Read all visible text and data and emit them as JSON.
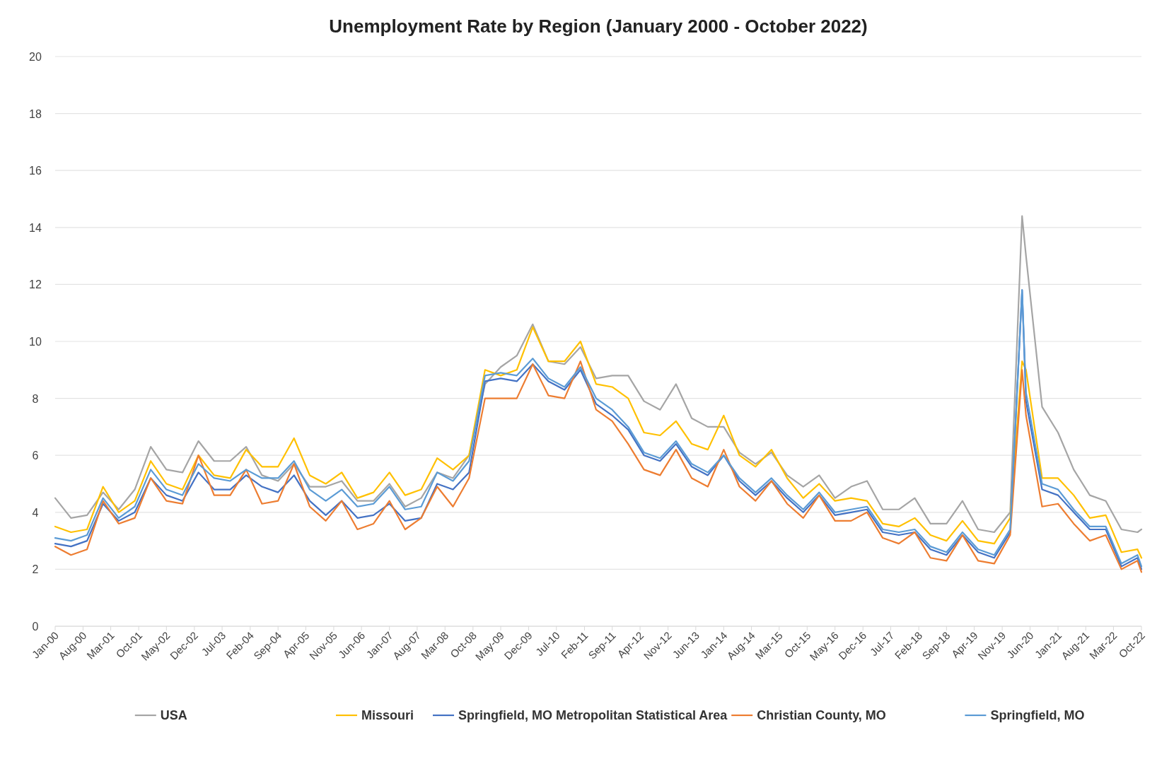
{
  "chart_data": {
    "type": "line",
    "title": "Unemployment Rate by Region (January 2000 - October 2022)",
    "x": [
      "2000-01",
      "2000-05",
      "2000-09",
      "2001-01",
      "2001-05",
      "2001-09",
      "2002-01",
      "2002-05",
      "2002-09",
      "2003-01",
      "2003-05",
      "2003-09",
      "2004-01",
      "2004-05",
      "2004-09",
      "2005-01",
      "2005-05",
      "2005-09",
      "2006-01",
      "2006-05",
      "2006-09",
      "2007-01",
      "2007-05",
      "2007-09",
      "2008-01",
      "2008-05",
      "2008-09",
      "2009-01",
      "2009-05",
      "2009-09",
      "2010-01",
      "2010-05",
      "2010-09",
      "2011-01",
      "2011-05",
      "2011-09",
      "2012-01",
      "2012-05",
      "2012-09",
      "2013-01",
      "2013-05",
      "2013-09",
      "2014-01",
      "2014-05",
      "2014-09",
      "2015-01",
      "2015-05",
      "2015-09",
      "2016-01",
      "2016-05",
      "2016-09",
      "2017-01",
      "2017-05",
      "2017-09",
      "2018-01",
      "2018-05",
      "2018-09",
      "2019-01",
      "2019-05",
      "2019-09",
      "2020-01",
      "2020-04",
      "2020-05",
      "2020-09",
      "2021-01",
      "2021-05",
      "2021-09",
      "2022-01",
      "2022-05",
      "2022-09",
      "2022-10"
    ],
    "series": [
      {
        "name": "USA",
        "color": "#a5a5a5",
        "values": [
          4.5,
          3.8,
          3.9,
          4.7,
          4.1,
          4.8,
          6.3,
          5.5,
          5.4,
          6.5,
          5.8,
          5.8,
          6.3,
          5.3,
          5.1,
          5.7,
          4.9,
          4.9,
          5.1,
          4.4,
          4.4,
          5.0,
          4.2,
          4.5,
          5.4,
          5.2,
          6.0,
          8.5,
          9.1,
          9.5,
          10.6,
          9.3,
          9.2,
          9.8,
          8.7,
          8.8,
          8.8,
          7.9,
          7.6,
          8.5,
          7.3,
          7.0,
          7.0,
          6.1,
          5.7,
          6.1,
          5.3,
          4.9,
          5.3,
          4.5,
          4.9,
          5.1,
          4.1,
          4.1,
          4.5,
          3.6,
          3.6,
          4.4,
          3.4,
          3.3,
          4.0,
          14.4,
          13.0,
          7.7,
          6.8,
          5.5,
          4.6,
          4.4,
          3.4,
          3.3,
          3.4
        ]
      },
      {
        "name": "Missouri",
        "color": "#ffc000",
        "values": [
          3.5,
          3.3,
          3.4,
          4.9,
          4.0,
          4.4,
          5.8,
          5.0,
          4.8,
          6.0,
          5.3,
          5.2,
          6.2,
          5.6,
          5.6,
          6.6,
          5.3,
          5.0,
          5.4,
          4.5,
          4.7,
          5.4,
          4.6,
          4.8,
          5.9,
          5.5,
          6.0,
          9.0,
          8.8,
          9.0,
          10.5,
          9.3,
          9.3,
          10.0,
          8.5,
          8.4,
          8.0,
          6.8,
          6.7,
          7.2,
          6.4,
          6.2,
          7.4,
          6.0,
          5.6,
          6.2,
          5.2,
          4.5,
          5.0,
          4.4,
          4.5,
          4.4,
          3.6,
          3.5,
          3.8,
          3.2,
          3.0,
          3.7,
          3.0,
          2.9,
          3.8,
          9.3,
          9.0,
          5.2,
          5.2,
          4.6,
          3.8,
          3.9,
          2.6,
          2.7,
          2.4
        ]
      },
      {
        "name": "Springfield, MO Metropolitan Statistical Area",
        "color": "#4472c4",
        "values": [
          2.9,
          2.8,
          3.0,
          4.3,
          3.7,
          4.0,
          5.2,
          4.6,
          4.4,
          5.4,
          4.8,
          4.8,
          5.3,
          4.9,
          4.7,
          5.3,
          4.4,
          3.9,
          4.4,
          3.8,
          3.9,
          4.3,
          3.7,
          3.8,
          5.0,
          4.8,
          5.4,
          8.6,
          8.7,
          8.6,
          9.2,
          8.6,
          8.3,
          9.0,
          7.8,
          7.4,
          6.9,
          6.0,
          5.8,
          6.4,
          5.6,
          5.3,
          6.0,
          5.1,
          4.6,
          5.1,
          4.5,
          4.0,
          4.6,
          3.9,
          4.0,
          4.1,
          3.3,
          3.2,
          3.3,
          2.7,
          2.5,
          3.2,
          2.6,
          2.4,
          3.3,
          11.8,
          7.9,
          4.8,
          4.6,
          4.0,
          3.4,
          3.4,
          2.1,
          2.4,
          2.0
        ]
      },
      {
        "name": "Christian County, MO",
        "color": "#ed7d31",
        "values": [
          2.8,
          2.5,
          2.7,
          4.4,
          3.6,
          3.8,
          5.2,
          4.4,
          4.3,
          6.0,
          4.6,
          4.6,
          5.5,
          4.3,
          4.4,
          5.7,
          4.2,
          3.7,
          4.4,
          3.4,
          3.6,
          4.4,
          3.4,
          3.8,
          4.9,
          4.2,
          5.2,
          8.0,
          8.0,
          8.0,
          9.2,
          8.1,
          8.0,
          9.3,
          7.6,
          7.2,
          6.4,
          5.5,
          5.3,
          6.2,
          5.2,
          4.9,
          6.2,
          4.9,
          4.4,
          5.1,
          4.3,
          3.8,
          4.6,
          3.7,
          3.7,
          4.0,
          3.1,
          2.9,
          3.3,
          2.4,
          2.3,
          3.2,
          2.3,
          2.2,
          3.2,
          9.0,
          7.4,
          4.2,
          4.3,
          3.6,
          3.0,
          3.2,
          2.0,
          2.3,
          1.9
        ]
      },
      {
        "name": "Springfield, MO",
        "color": "#5b9bd5",
        "values": [
          3.1,
          3.0,
          3.2,
          4.5,
          3.8,
          4.2,
          5.5,
          4.8,
          4.6,
          5.7,
          5.2,
          5.1,
          5.5,
          5.2,
          5.2,
          5.8,
          4.8,
          4.4,
          4.8,
          4.2,
          4.3,
          4.9,
          4.1,
          4.2,
          5.4,
          5.1,
          5.8,
          8.8,
          8.9,
          8.8,
          9.4,
          8.7,
          8.4,
          9.1,
          8.0,
          7.6,
          7.0,
          6.1,
          5.9,
          6.5,
          5.7,
          5.4,
          6.0,
          5.2,
          4.7,
          5.2,
          4.6,
          4.1,
          4.7,
          4.0,
          4.1,
          4.2,
          3.4,
          3.3,
          3.4,
          2.8,
          2.6,
          3.3,
          2.7,
          2.5,
          3.4,
          11.8,
          8.2,
          5.0,
          4.8,
          4.1,
          3.5,
          3.5,
          2.2,
          2.5,
          2.1
        ]
      }
    ],
    "xlim": [
      "2000-01",
      "2022-10"
    ],
    "xticks": [
      {
        "value": "2000-01",
        "label": "Jan-00"
      },
      {
        "value": "2000-08",
        "label": "Aug-00"
      },
      {
        "value": "2001-03",
        "label": "Mar-01"
      },
      {
        "value": "2001-10",
        "label": "Oct-01"
      },
      {
        "value": "2002-05",
        "label": "May-02"
      },
      {
        "value": "2002-12",
        "label": "Dec-02"
      },
      {
        "value": "2003-07",
        "label": "Jul-03"
      },
      {
        "value": "2004-02",
        "label": "Feb-04"
      },
      {
        "value": "2004-09",
        "label": "Sep-04"
      },
      {
        "value": "2005-04",
        "label": "Apr-05"
      },
      {
        "value": "2005-11",
        "label": "Nov-05"
      },
      {
        "value": "2006-06",
        "label": "Jun-06"
      },
      {
        "value": "2007-01",
        "label": "Jan-07"
      },
      {
        "value": "2007-08",
        "label": "Aug-07"
      },
      {
        "value": "2008-03",
        "label": "Mar-08"
      },
      {
        "value": "2008-10",
        "label": "Oct-08"
      },
      {
        "value": "2009-05",
        "label": "May-09"
      },
      {
        "value": "2009-12",
        "label": "Dec-09"
      },
      {
        "value": "2010-07",
        "label": "Jul-10"
      },
      {
        "value": "2011-02",
        "label": "Feb-11"
      },
      {
        "value": "2011-09",
        "label": "Sep-11"
      },
      {
        "value": "2012-04",
        "label": "Apr-12"
      },
      {
        "value": "2012-11",
        "label": "Nov-12"
      },
      {
        "value": "2013-06",
        "label": "Jun-13"
      },
      {
        "value": "2014-01",
        "label": "Jan-14"
      },
      {
        "value": "2014-08",
        "label": "Aug-14"
      },
      {
        "value": "2015-03",
        "label": "Mar-15"
      },
      {
        "value": "2015-10",
        "label": "Oct-15"
      },
      {
        "value": "2016-05",
        "label": "May-16"
      },
      {
        "value": "2016-12",
        "label": "Dec-16"
      },
      {
        "value": "2017-07",
        "label": "Jul-17"
      },
      {
        "value": "2018-02",
        "label": "Feb-18"
      },
      {
        "value": "2018-09",
        "label": "Sep-18"
      },
      {
        "value": "2019-04",
        "label": "Apr-19"
      },
      {
        "value": "2019-11",
        "label": "Nov-19"
      },
      {
        "value": "2020-06",
        "label": "Jun-20"
      },
      {
        "value": "2021-01",
        "label": "Jan-21"
      },
      {
        "value": "2021-08",
        "label": "Aug-21"
      },
      {
        "value": "2022-03",
        "label": "Mar-22"
      },
      {
        "value": "2022-10",
        "label": "Oct-22"
      }
    ],
    "ylim": [
      0,
      20
    ],
    "yticks": [
      0,
      2,
      4,
      6,
      8,
      10,
      12,
      14,
      16,
      18,
      20
    ],
    "grid": "y",
    "legend": "bottom",
    "marker": "none",
    "line_style": "solid"
  }
}
